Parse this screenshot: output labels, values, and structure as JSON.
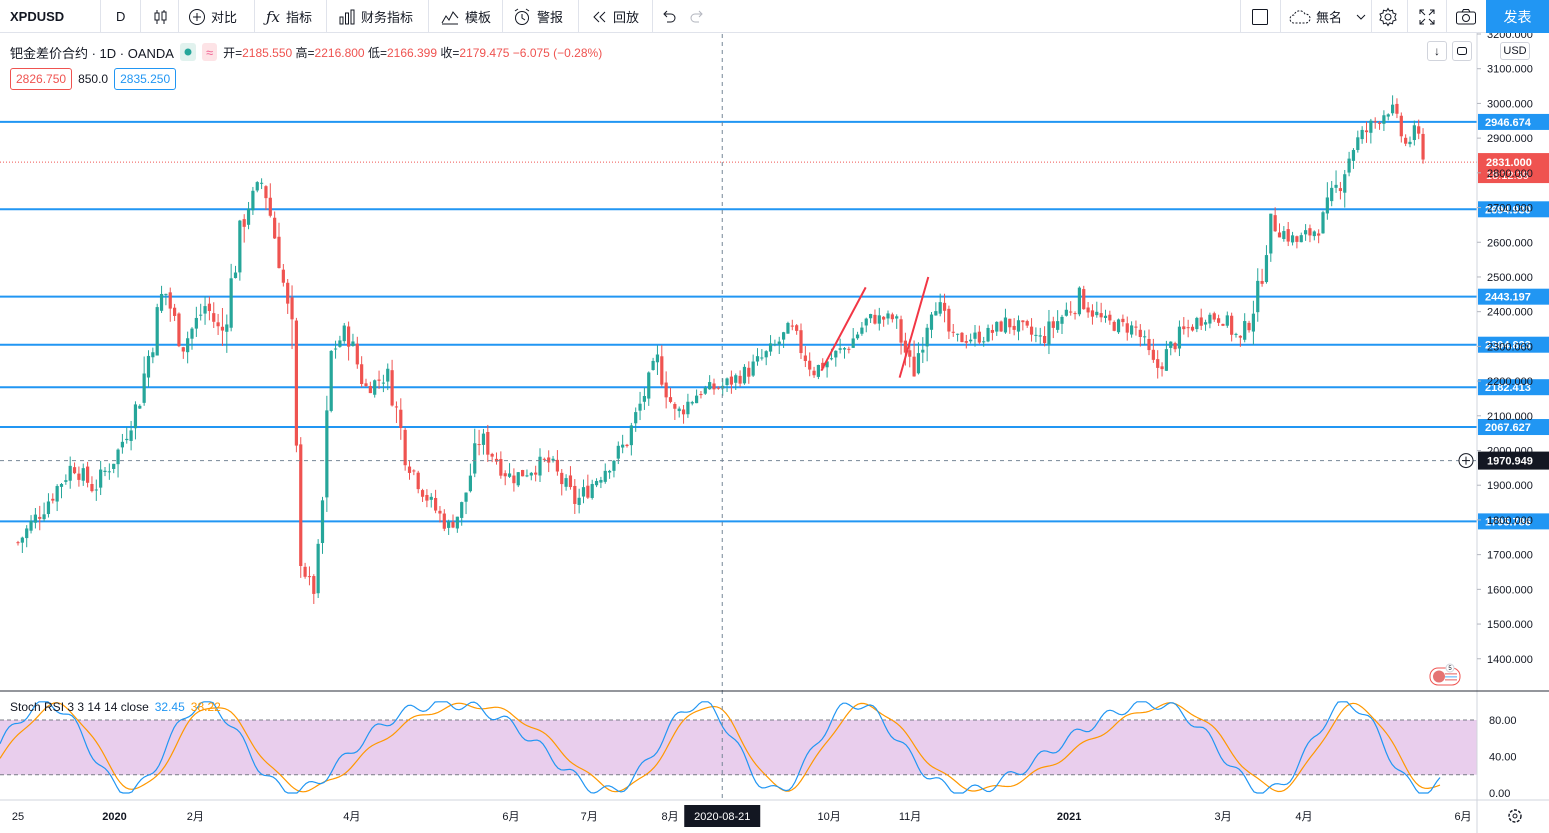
{
  "toolbar": {
    "symbol": "XPDUSD",
    "interval": "D",
    "compare_label": "对比",
    "indicators_label": "指标",
    "financials_label": "财务指标",
    "templates_label": "模板",
    "alert_label": "警报",
    "replay_label": "回放",
    "layout_name": "無名",
    "publish_label": "发表"
  },
  "legend": {
    "title": "钯金差价合约 · 1D · OANDA",
    "open_label": "开=",
    "open": "2185.550",
    "high_label": "高=",
    "high": "2216.800",
    "low_label": "低=",
    "low": "2166.399",
    "close_label": "收=",
    "close": "2179.475",
    "change": "−6.075 (−0.28%)",
    "sell": "2826.750",
    "spread": "850.0",
    "buy": "2835.250"
  },
  "currency": "USD",
  "crosshair": {
    "date_label": "2020-08-21",
    "price_label": "1970.949",
    "price": 1970.949
  },
  "last_price": {
    "value": "2831.000",
    "countdown": "18:12:39",
    "price": 2831.0
  },
  "horizontal_levels": [
    2946.674,
    2694.93,
    2443.197,
    2304.823,
    2182.413,
    2067.627,
    1795.786
  ],
  "level_labels": [
    "2946.674",
    "2694.930",
    "2443.197",
    "2304.823",
    "2182.413",
    "2067.627",
    "1795.786"
  ],
  "price_axis": {
    "ticks": [
      "3200.000",
      "3100.000",
      "3000.000",
      "2900.000",
      "2800.000",
      "2700.000",
      "2600.000",
      "2500.000",
      "2400.000",
      "2300.000",
      "2200.000",
      "2100.000",
      "2000.000",
      "1900.000",
      "1800.000",
      "1700.000",
      "1600.000",
      "1500.000",
      "1400.000"
    ],
    "values": [
      3200,
      3100,
      3000,
      2900,
      2800,
      2700,
      2600,
      2500,
      2400,
      2300,
      2200,
      2100,
      2000,
      1900,
      1800,
      1700,
      1600,
      1500,
      1400
    ],
    "range": [
      1310,
      3200
    ]
  },
  "time_axis": {
    "labels": [
      "25",
      "2020",
      "2月",
      "4月",
      "6月",
      "7月",
      "8月",
      "10月",
      "11月",
      "2021",
      "3月",
      "4月",
      "6月"
    ],
    "bold": [
      false,
      true,
      false,
      false,
      false,
      false,
      false,
      false,
      false,
      true,
      false,
      false,
      false
    ]
  },
  "stoch": {
    "label": "Stoch RSI 3 3 14 14 close",
    "k_value": "32.45",
    "d_value": "38.22",
    "upper_band": 80,
    "lower_band": 20,
    "ticks": [
      "80.00",
      "40.00",
      "0.00"
    ],
    "tick_values": [
      80,
      40,
      0
    ]
  },
  "events_badge": "5",
  "colors": {
    "up": "#26a69a",
    "down": "#ef5350",
    "level_line": "#2196f3",
    "stoch_k": "#2196f3",
    "stoch_d": "#ff9800",
    "band_fill": "#e1bee7"
  },
  "chart_data": {
    "type": "candlestick",
    "title": "钯金差价合约 · 1D · OANDA",
    "ylim": [
      1310,
      3200
    ],
    "anchors": [
      {
        "x": "2019-11-25",
        "y": 1735
      },
      {
        "x": "2019-12-05",
        "y": 1840
      },
      {
        "x": "2019-12-16",
        "y": 1960
      },
      {
        "x": "2019-12-24",
        "y": 1890
      },
      {
        "x": "2020-01-02",
        "y": 1990
      },
      {
        "x": "2020-01-10",
        "y": 2140
      },
      {
        "x": "2020-01-20",
        "y": 2470
      },
      {
        "x": "2020-01-27",
        "y": 2300
      },
      {
        "x": "2020-02-05",
        "y": 2420
      },
      {
        "x": "2020-02-11",
        "y": 2330
      },
      {
        "x": "2020-02-20",
        "y": 2690
      },
      {
        "x": "2020-02-27",
        "y": 2780
      },
      {
        "x": "2020-03-04",
        "y": 2560
      },
      {
        "x": "2020-03-09",
        "y": 2330
      },
      {
        "x": "2020-03-12",
        "y": 1700
      },
      {
        "x": "2020-03-17",
        "y": 1580
      },
      {
        "x": "2020-03-20",
        "y": 1750
      },
      {
        "x": "2020-03-24",
        "y": 2280
      },
      {
        "x": "2020-03-30",
        "y": 2350
      },
      {
        "x": "2020-04-06",
        "y": 2180
      },
      {
        "x": "2020-04-15",
        "y": 2220
      },
      {
        "x": "2020-04-22",
        "y": 1980
      },
      {
        "x": "2020-05-01",
        "y": 1850
      },
      {
        "x": "2020-05-08",
        "y": 1780
      },
      {
        "x": "2020-05-13",
        "y": 1830
      },
      {
        "x": "2020-05-20",
        "y": 2040
      },
      {
        "x": "2020-06-01",
        "y": 1920
      },
      {
        "x": "2020-06-15",
        "y": 1970
      },
      {
        "x": "2020-06-26",
        "y": 1850
      },
      {
        "x": "2020-07-06",
        "y": 1940
      },
      {
        "x": "2020-07-15",
        "y": 2020
      },
      {
        "x": "2020-07-22",
        "y": 2160
      },
      {
        "x": "2020-07-27",
        "y": 2260
      },
      {
        "x": "2020-08-03",
        "y": 2100
      },
      {
        "x": "2020-08-12",
        "y": 2170
      },
      {
        "x": "2020-08-21",
        "y": 2185
      },
      {
        "x": "2020-08-31",
        "y": 2230
      },
      {
        "x": "2020-09-09",
        "y": 2290
      },
      {
        "x": "2020-09-16",
        "y": 2350
      },
      {
        "x": "2020-09-25",
        "y": 2230
      },
      {
        "x": "2020-10-08",
        "y": 2300
      },
      {
        "x": "2020-10-16",
        "y": 2380
      },
      {
        "x": "2020-10-26",
        "y": 2380
      },
      {
        "x": "2020-11-02",
        "y": 2220
      },
      {
        "x": "2020-11-10",
        "y": 2450
      },
      {
        "x": "2020-11-17",
        "y": 2320
      },
      {
        "x": "2020-11-30",
        "y": 2330
      },
      {
        "x": "2020-12-08",
        "y": 2370
      },
      {
        "x": "2020-12-21",
        "y": 2320
      },
      {
        "x": "2021-01-05",
        "y": 2440
      },
      {
        "x": "2021-01-14",
        "y": 2370
      },
      {
        "x": "2021-01-27",
        "y": 2350
      },
      {
        "x": "2021-02-03",
        "y": 2230
      },
      {
        "x": "2021-02-12",
        "y": 2330
      },
      {
        "x": "2021-02-22",
        "y": 2390
      },
      {
        "x": "2021-03-01",
        "y": 2380
      },
      {
        "x": "2021-03-08",
        "y": 2310
      },
      {
        "x": "2021-03-15",
        "y": 2470
      },
      {
        "x": "2021-03-19",
        "y": 2660
      },
      {
        "x": "2021-03-29",
        "y": 2600
      },
      {
        "x": "2021-04-08",
        "y": 2650
      },
      {
        "x": "2021-04-20",
        "y": 2880
      },
      {
        "x": "2021-04-30",
        "y": 2960
      },
      {
        "x": "2021-05-04",
        "y": 2990
      },
      {
        "x": "2021-05-10",
        "y": 2880
      },
      {
        "x": "2021-05-14",
        "y": 2920
      },
      {
        "x": "2021-05-18",
        "y": 2831
      }
    ]
  }
}
